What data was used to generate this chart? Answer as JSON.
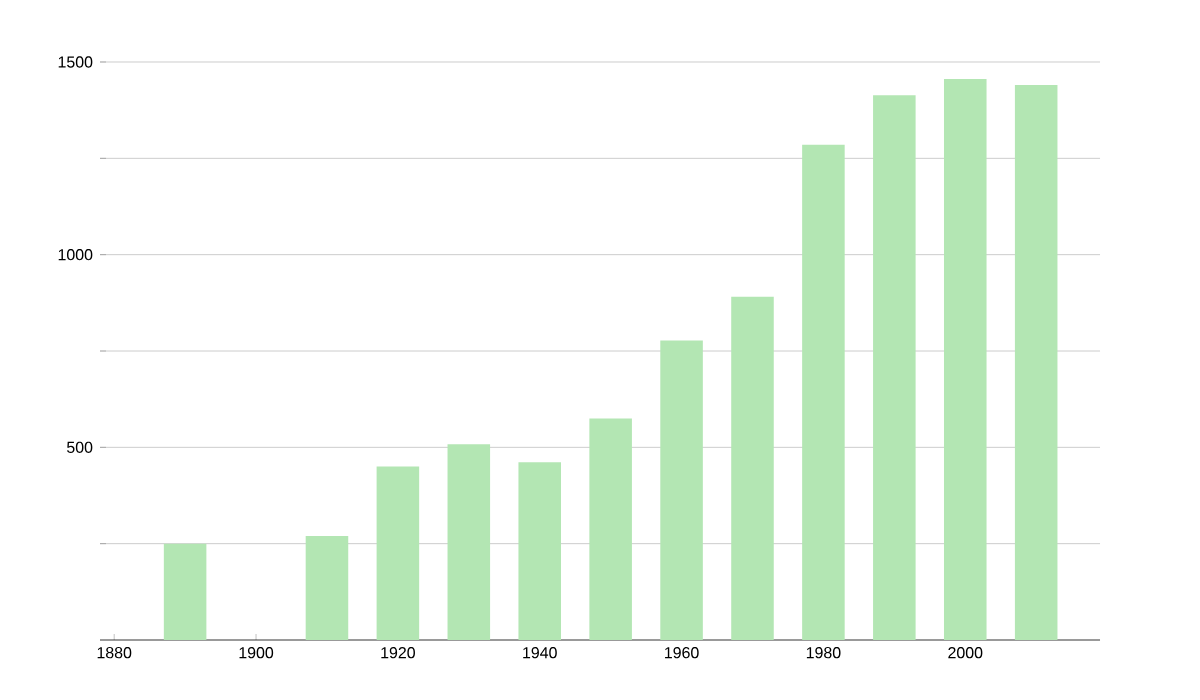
{
  "chart_data": {
    "type": "bar",
    "x": [
      1890,
      1910,
      1920,
      1930,
      1940,
      1950,
      1960,
      1970,
      1980,
      1990,
      2000,
      2010
    ],
    "values": [
      250,
      270,
      450,
      508,
      461,
      575,
      777,
      891,
      1285,
      1414,
      1456,
      1440
    ],
    "color": "#b3e6b3",
    "xlim": [
      1878,
      2019
    ],
    "xticks": [
      1880,
      1900,
      1920,
      1940,
      1960,
      1980,
      2000
    ],
    "ylim": [
      0,
      1500
    ],
    "yticks": [
      {
        "value": 250,
        "label": null
      },
      500,
      {
        "value": 750,
        "label": null
      },
      1000,
      {
        "value": 1250,
        "label": null
      },
      1500
    ],
    "grid": "y"
  }
}
